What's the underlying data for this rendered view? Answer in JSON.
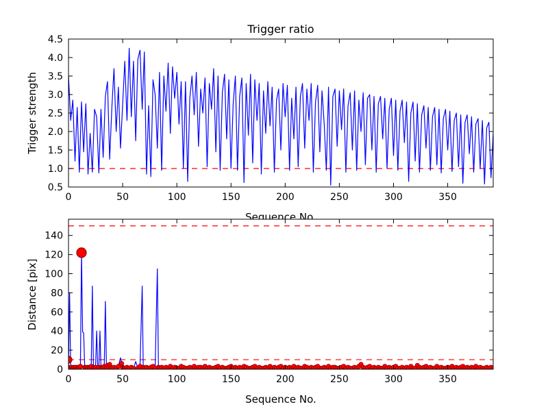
{
  "figure": {
    "background": "#ffffff"
  },
  "colors": {
    "series_line": "#0000ff",
    "threshold_line": "#ff0000",
    "marker_fill": "#ff0000",
    "marker_edge": "#8b0000",
    "axis": "#000000"
  },
  "chart_data": [
    {
      "type": "line",
      "title": "Trigger ratio",
      "xlabel": "Sequence No.",
      "ylabel": "Trigger strength",
      "xlim": [
        0,
        392
      ],
      "ylim": [
        0.5,
        4.5
      ],
      "xticks": [
        "0",
        "50",
        "100",
        "150",
        "200",
        "250",
        "300",
        "350"
      ],
      "yticks": [
        "4.5",
        "4.0",
        "3.5",
        "3.0",
        "2.5",
        "2.0",
        "1.5",
        "1.0",
        "0.5"
      ],
      "grid": false,
      "legend": "none",
      "thresholds": [
        1.0
      ],
      "series": [
        {
          "name": "trigger-strength",
          "color": "#0000ff",
          "x_start": 0,
          "x_step": 2,
          "values": [
            3.5,
            2.3,
            2.85,
            1.2,
            2.65,
            0.9,
            2.8,
            1.45,
            2.75,
            0.85,
            1.95,
            0.9,
            2.6,
            2.4,
            0.88,
            2.6,
            1.3,
            2.95,
            3.35,
            1.25,
            2.65,
            3.7,
            2.0,
            3.2,
            1.55,
            2.75,
            3.9,
            2.3,
            4.25,
            2.4,
            3.9,
            1.75,
            3.95,
            4.2,
            2.6,
            4.15,
            0.85,
            2.7,
            0.78,
            3.4,
            3.0,
            1.55,
            3.6,
            0.95,
            3.5,
            2.55,
            3.85,
            1.95,
            3.75,
            2.9,
            3.6,
            2.2,
            3.35,
            1.0,
            3.35,
            0.65,
            2.9,
            3.5,
            2.45,
            3.6,
            1.6,
            3.15,
            2.5,
            3.45,
            1.05,
            3.3,
            2.6,
            3.7,
            1.45,
            3.5,
            0.95,
            3.05,
            3.55,
            1.8,
            3.4,
            1.0,
            2.75,
            3.5,
            0.95,
            2.95,
            3.45,
            0.62,
            3.3,
            1.9,
            3.55,
            1.15,
            3.4,
            2.3,
            3.3,
            0.85,
            3.1,
            1.95,
            3.35,
            2.15,
            3.2,
            0.9,
            2.85,
            3.15,
            1.5,
            3.3,
            2.4,
            3.25,
            0.95,
            2.9,
            1.8,
            3.2,
            1.05,
            2.95,
            3.3,
            1.55,
            3.15,
            2.3,
            3.3,
            0.9,
            2.8,
            3.25,
            1.45,
            3.1,
            2.2,
            0.95,
            3.2,
            0.55,
            2.95,
            3.15,
            1.6,
            3.1,
            2.05,
            3.15,
            0.9,
            2.7,
            3.05,
            1.5,
            3.1,
            0.95,
            2.85,
            2.0,
            3.05,
            1.1,
            2.9,
            3.0,
            1.5,
            2.95,
            0.9,
            2.75,
            2.95,
            1.8,
            2.9,
            1.0,
            2.6,
            2.9,
            1.35,
            2.85,
            0.95,
            2.55,
            2.85,
            1.7,
            2.8,
            0.65,
            2.5,
            2.8,
            1.2,
            2.75,
            0.9,
            2.45,
            2.7,
            1.55,
            2.65,
            0.95,
            2.4,
            2.65,
            1.1,
            2.6,
            0.88,
            2.35,
            2.6,
            1.5,
            2.55,
            0.92,
            2.3,
            2.5,
            1.05,
            2.45,
            0.6,
            2.25,
            2.45,
            1.4,
            2.4,
            0.9,
            2.2,
            2.35,
            1.0,
            2.3,
            0.58,
            2.1,
            2.25,
            0.75,
            1.95
          ]
        }
      ]
    },
    {
      "type": "line",
      "title": "",
      "xlabel": "Sequence No.",
      "ylabel": "Distance [pix]",
      "xlim": [
        0,
        392
      ],
      "ylim": [
        0,
        157
      ],
      "xticks": [
        "0",
        "50",
        "100",
        "150",
        "200",
        "250",
        "300",
        "350"
      ],
      "yticks": [
        "140",
        "120",
        "100",
        "80",
        "60",
        "40",
        "20",
        "0"
      ],
      "grid": false,
      "legend": "none",
      "thresholds": [
        150,
        10
      ],
      "series": [
        {
          "name": "distance",
          "color": "#0000ff",
          "points_explicit": [
            [
              0,
              2
            ],
            [
              1,
              80
            ],
            [
              2,
              1
            ],
            [
              3,
              2
            ],
            [
              4,
              1
            ],
            [
              5,
              2
            ],
            [
              6,
              1
            ],
            [
              7,
              2
            ],
            [
              8,
              1
            ],
            [
              9,
              2
            ],
            [
              10,
              1
            ],
            [
              11,
              3
            ],
            [
              12,
              122
            ],
            [
              13,
              39
            ],
            [
              14,
              38
            ],
            [
              15,
              2
            ],
            [
              16,
              1
            ],
            [
              17,
              2
            ],
            [
              18,
              1
            ],
            [
              19,
              2
            ],
            [
              20,
              2
            ],
            [
              21,
              3
            ],
            [
              22,
              87
            ],
            [
              23,
              2
            ],
            [
              24,
              1
            ],
            [
              25,
              2
            ],
            [
              26,
              40
            ],
            [
              27,
              1
            ],
            [
              28,
              2
            ],
            [
              29,
              40
            ],
            [
              30,
              2
            ],
            [
              31,
              1
            ],
            [
              32,
              2
            ],
            [
              33,
              3
            ],
            [
              34,
              71
            ],
            [
              35,
              2
            ],
            [
              36,
              4
            ],
            [
              37,
              2
            ],
            [
              38,
              5
            ],
            [
              39,
              2
            ],
            [
              40,
              1
            ],
            [
              42,
              2
            ],
            [
              44,
              1
            ],
            [
              46,
              3
            ],
            [
              48,
              12
            ],
            [
              49,
              6
            ],
            [
              50,
              2
            ],
            [
              52,
              1
            ],
            [
              54,
              2
            ],
            [
              56,
              1
            ],
            [
              58,
              2
            ],
            [
              60,
              1
            ],
            [
              62,
              8
            ],
            [
              64,
              1
            ],
            [
              66,
              3
            ],
            [
              68,
              87
            ],
            [
              69,
              2
            ],
            [
              70,
              1
            ],
            [
              72,
              2
            ],
            [
              74,
              1
            ],
            [
              76,
              2
            ],
            [
              78,
              3
            ],
            [
              80,
              1
            ],
            [
              82,
              105
            ],
            [
              83,
              2
            ],
            [
              84,
              1
            ],
            [
              86,
              2
            ],
            [
              88,
              1
            ]
          ],
          "tail_x_start": 90,
          "tail_x_step": 2,
          "tail_values": [
            2,
            1,
            3,
            1,
            2,
            1,
            1,
            3,
            2,
            1,
            1,
            2,
            1,
            3,
            1,
            2,
            2,
            1,
            3,
            1,
            2,
            1,
            1,
            2,
            3,
            1,
            2,
            1,
            1,
            2,
            3,
            1,
            2,
            1,
            2,
            1,
            3,
            2,
            1,
            1,
            2,
            3,
            1,
            2,
            1,
            1,
            2,
            1,
            3,
            1,
            2,
            1,
            2,
            3,
            1,
            2,
            1,
            2,
            1,
            3,
            1,
            2,
            1,
            1,
            3,
            2,
            1,
            2,
            1,
            2,
            3,
            1,
            1,
            2,
            1,
            3,
            1,
            2,
            2,
            1,
            1,
            2,
            3,
            1,
            2,
            1,
            1,
            2,
            1,
            3,
            5,
            2,
            1,
            2,
            3,
            1,
            2,
            1,
            2,
            1,
            1,
            3,
            1,
            2,
            1,
            2,
            3,
            1,
            1,
            2,
            1,
            2,
            1,
            3,
            1,
            1,
            4,
            2,
            1,
            2,
            3,
            1,
            2,
            1,
            1,
            3,
            1,
            2,
            1,
            1,
            2,
            1,
            3,
            1,
            2,
            1,
            2,
            3,
            1,
            2,
            1,
            2,
            1,
            3,
            1,
            2,
            1,
            1,
            2,
            1,
            2,
            1
          ]
        }
      ],
      "markers": {
        "dot_threshold": 7,
        "dot_radius": 3.2,
        "special": [
          {
            "x": 0,
            "y": 10,
            "r": 5
          },
          {
            "x": 12,
            "y": 122,
            "r": 7
          }
        ]
      }
    }
  ]
}
